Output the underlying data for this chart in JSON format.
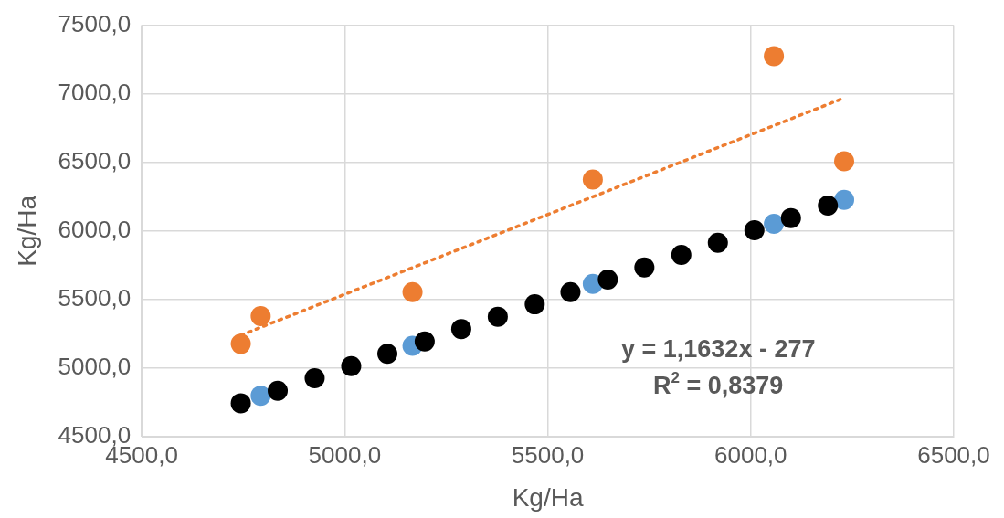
{
  "chart_data": {
    "type": "scatter",
    "xlabel": "Kg/Ha",
    "ylabel": "Kg/Ha",
    "xlim": [
      4500,
      6500
    ],
    "xticks": [
      {
        "value": 4500,
        "label": "4500,0"
      },
      {
        "value": 5000,
        "label": "5000,0"
      },
      {
        "value": 5500,
        "label": "5500,0"
      },
      {
        "value": 6000,
        "label": "6000,0"
      },
      {
        "value": 6500,
        "label": "6500,0"
      }
    ],
    "ylim": [
      4500,
      7500
    ],
    "yticks": [
      {
        "value": 4500,
        "label": "4500,0"
      },
      {
        "value": 5000,
        "label": "5000,0"
      },
      {
        "value": 5500,
        "label": "5500,0"
      },
      {
        "value": 6000,
        "label": "6000,0"
      },
      {
        "value": 6500,
        "label": "6500,0"
      },
      {
        "value": 7000,
        "label": "7000,0"
      },
      {
        "value": 7500,
        "label": "7500,0"
      }
    ],
    "grid": true,
    "legend": false,
    "marker": "circle",
    "annotations": [
      "y = 1,1632x - 277",
      "R$^{2}$ = 0,8379"
    ],
    "series": [
      {
        "type": "scatter",
        "color": "#ed7d31",
        "x": [
          4744,
          4793,
          5167,
          5611,
          6057,
          6230
        ],
        "values": [
          5178,
          5380,
          5555,
          6376,
          7275,
          6509
        ]
      },
      {
        "type": "scatter",
        "color": "#5b9bd5",
        "x": [
          4793,
          5167,
          5611,
          6057,
          6230
        ],
        "values": [
          4800,
          5164,
          5615,
          6052,
          6227
        ]
      },
      {
        "type": "scatter",
        "color": "#000000",
        "x": [
          4744,
          4835,
          4926,
          5016,
          5105,
          5197,
          5287,
          5377,
          5468,
          5556,
          5648,
          5738,
          5829,
          5919,
          6009,
          6099,
          6190
        ],
        "values": [
          4745,
          4836,
          4927,
          5016,
          5106,
          5196,
          5286,
          5376,
          5466,
          5555,
          5646,
          5735,
          5826,
          5915,
          6006,
          6095,
          6186
        ]
      },
      {
        "type": "line",
        "color": "#ed7d31",
        "line_style": "dotted",
        "marker": "none",
        "x": [
          4744,
          6230
        ],
        "values": [
          5241,
          6970
        ]
      }
    ]
  }
}
